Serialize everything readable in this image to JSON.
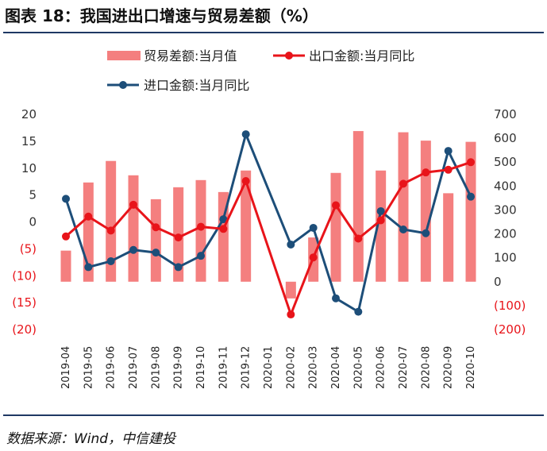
{
  "header": {
    "title": "图表 18：我国进出口增速与贸易差额（%）"
  },
  "footer": {
    "source": "数据来源：Wind，中信建投"
  },
  "chart_data": {
    "type": "bar+line",
    "categories": [
      "2019-04",
      "2019-05",
      "2019-06",
      "2019-07",
      "2019-08",
      "2019-09",
      "2019-10",
      "2019-11",
      "2019-12",
      "2020-01",
      "2020-02",
      "2020-03",
      "2020-04",
      "2020-05",
      "2020-06",
      "2020-07",
      "2020-08",
      "2020-09",
      "2020-10"
    ],
    "series": [
      {
        "name": "贸易差额:当月值",
        "type": "bar",
        "axis": "right",
        "values": [
          130,
          415,
          505,
          445,
          345,
          395,
          425,
          375,
          465,
          null,
          -70,
          185,
          455,
          630,
          465,
          625,
          590,
          370,
          585
        ]
      },
      {
        "name": "出口金额:当月同比",
        "type": "line",
        "axis": "left",
        "values": [
          -2.7,
          1.0,
          -1.6,
          3.2,
          -1.0,
          -2.9,
          -0.9,
          -1.3,
          7.6,
          null,
          -17.2,
          -6.6,
          3.1,
          -3.1,
          0.3,
          7.1,
          9.2,
          9.7,
          11.1
        ]
      },
      {
        "name": "进口金额:当月同比",
        "type": "line",
        "axis": "left",
        "values": [
          4.3,
          -8.4,
          -7.3,
          -5.2,
          -5.7,
          -8.4,
          -6.3,
          0.5,
          16.3,
          null,
          -4.2,
          -1.1,
          -14.2,
          -16.7,
          2.0,
          -1.4,
          -2.1,
          13.2,
          4.7
        ]
      }
    ],
    "left_axis": {
      "ticks": [
        "20",
        "15",
        "10",
        "5",
        "0",
        "(5)",
        "(10)",
        "(15)",
        "(20)"
      ],
      "range": [
        -20,
        20
      ]
    },
    "right_axis": {
      "ticks": [
        "700",
        "600",
        "500",
        "400",
        "300",
        "200",
        "100",
        "0",
        "(100)",
        "(200)"
      ],
      "range": [
        -200,
        700
      ]
    },
    "legend_position": "top",
    "colors": {
      "bar": "#f47f7f",
      "export": "#e8141a",
      "import": "#1d4e79",
      "negative_tick": "#e8141a",
      "tick": "#333333",
      "rule": "#1f3864"
    }
  }
}
